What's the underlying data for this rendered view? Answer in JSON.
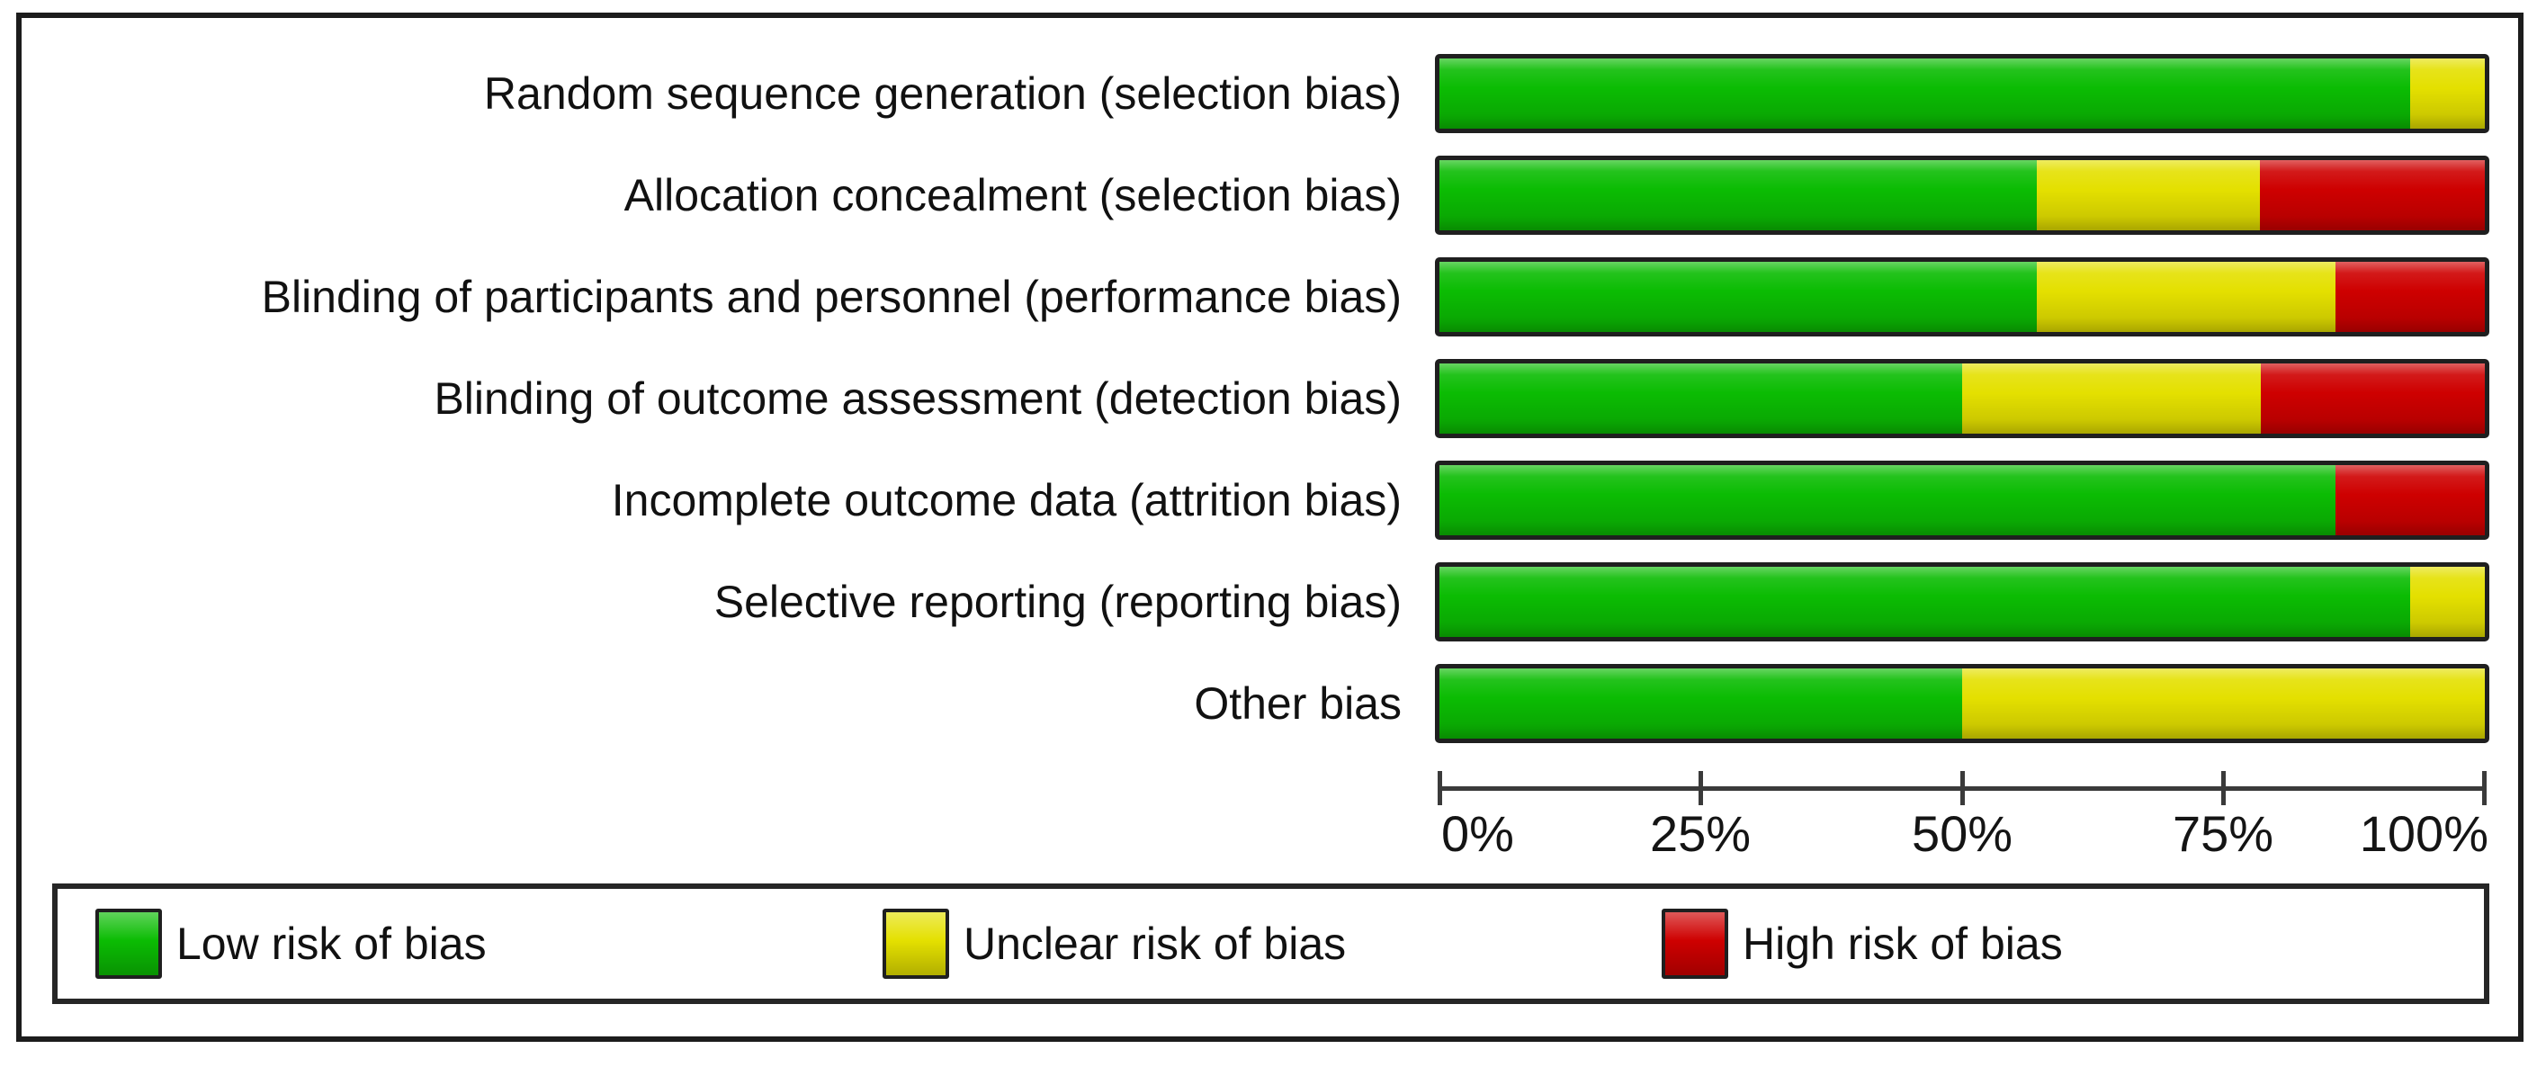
{
  "chart_data": {
    "type": "bar",
    "subtype": "horizontal-stacked-percent",
    "title": "",
    "categories": [
      "Random sequence generation (selection bias)",
      "Allocation concealment (selection bias)",
      "Blinding of participants and personnel (performance bias)",
      "Blinding of outcome assessment (detection bias)",
      "Incomplete outcome data (attrition bias)",
      "Selective reporting (reporting bias)",
      "Other bias"
    ],
    "series": [
      {
        "name": "Low risk of bias",
        "color": "#0bbc03",
        "values": [
          92.9,
          57.1,
          57.1,
          50.0,
          85.7,
          92.9,
          50.0
        ]
      },
      {
        "name": "Unclear risk of bias",
        "color": "#e4e000",
        "values": [
          7.1,
          21.4,
          28.6,
          28.6,
          0.0,
          7.1,
          50.0
        ]
      },
      {
        "name": "High risk of bias",
        "color": "#ce0000",
        "values": [
          0.0,
          21.4,
          14.3,
          21.4,
          14.3,
          0.0,
          0.0
        ]
      }
    ],
    "x_axis": {
      "range": [
        0,
        100
      ],
      "tick_labels": [
        "0%",
        "25%",
        "50%",
        "75%",
        "100%"
      ],
      "grid": false
    },
    "legend": {
      "position": "bottom",
      "entries": [
        "Low risk of bias",
        "Unclear risk of bias",
        "High risk of bias"
      ]
    },
    "colors": {
      "frame_border": "#1c1c1c",
      "bar_border": "#1f1f1f",
      "axis": "#3a3a3a",
      "text": "#141414"
    }
  }
}
